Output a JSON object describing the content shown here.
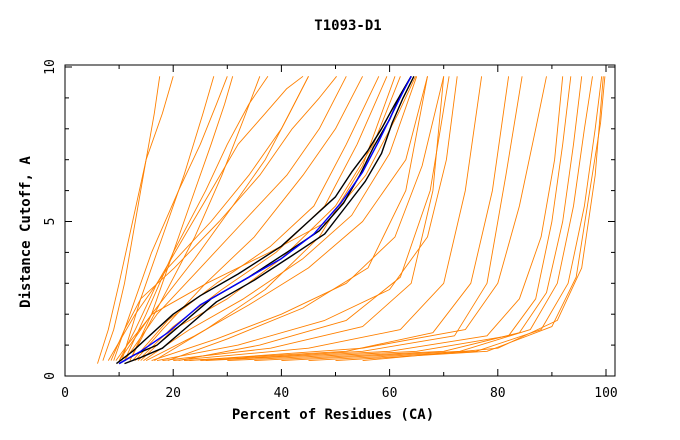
{
  "chart_data": {
    "type": "line",
    "title": "T1093-D1",
    "xlabel": "Percent of Residues (CA)",
    "ylabel": "Distance Cutoff, A",
    "xlim": [
      0,
      100
    ],
    "ylim": [
      0,
      10
    ],
    "x_ticks": [
      "0",
      "20",
      "40",
      "60",
      "80",
      "100"
    ],
    "y_ticks": [
      "0",
      "5",
      "10"
    ],
    "grid": false,
    "legend": "none",
    "colors": {
      "models": "#ff8000",
      "highlight_black": "#000000",
      "highlight_blue": "#0000ff",
      "axis": "#000000"
    },
    "series": [
      {
        "color": "#ff8000",
        "x": [
          9.4,
          11.5,
          16.1,
          26.2,
          37.8,
          48.5,
          55.6,
          61.6,
          64.8
        ],
        "y": [
          0.5,
          1.0,
          2.0,
          3.0,
          4.0,
          5.0,
          6.5,
          8.5,
          9.7
        ]
      },
      {
        "color": "#ff8000",
        "x": [
          8.5,
          11.0,
          14.0,
          20.2,
          28.5,
          36.0,
          42.0,
          47.0,
          50.2
        ],
        "y": [
          0.5,
          1.5,
          2.5,
          3.5,
          5.0,
          6.5,
          8.0,
          9.0,
          9.7
        ]
      },
      {
        "color": "#ff8000",
        "x": [
          10.0,
          13.0,
          17.0,
          22.0,
          27.0,
          32.0,
          37.0,
          41.0,
          44.0
        ],
        "y": [
          0.5,
          1.5,
          3.0,
          4.5,
          6.0,
          7.5,
          8.5,
          9.3,
          9.7
        ]
      },
      {
        "color": "#ff8000",
        "x": [
          7.0,
          9.0,
          11.0,
          13.0,
          15.0,
          16.5,
          17.5
        ],
        "y": [
          0.5,
          1.5,
          3.0,
          5.0,
          7.0,
          8.5,
          9.7
        ]
      },
      {
        "color": "#ff8000",
        "x": [
          6.0,
          8.0,
          10.0,
          12.5,
          15.0,
          18.0,
          20.0
        ],
        "y": [
          0.4,
          1.5,
          3.0,
          5.0,
          7.0,
          8.5,
          9.7
        ]
      },
      {
        "color": "#ff8000",
        "x": [
          12.0,
          16.0,
          20.0,
          24.0,
          27.0,
          29.5,
          31.0
        ],
        "y": [
          0.5,
          2.0,
          4.0,
          6.0,
          7.5,
          8.8,
          9.7
        ]
      },
      {
        "color": "#ff8000",
        "x": [
          11.0,
          15.0,
          20.0,
          26.0,
          30.0,
          34.0,
          37.5
        ],
        "y": [
          0.5,
          2.0,
          4.0,
          6.0,
          7.5,
          8.8,
          9.7
        ]
      },
      {
        "color": "#ff8000",
        "x": [
          13.0,
          18.0,
          26.0,
          35.0,
          44.0,
          50.0,
          55.0
        ],
        "y": [
          0.5,
          1.5,
          3.0,
          4.5,
          6.5,
          8.0,
          9.7
        ]
      },
      {
        "color": "#ff8000",
        "x": [
          14.0,
          20.0,
          30.0,
          40.0,
          50.0,
          57.0,
          62.0
        ],
        "y": [
          0.5,
          1.5,
          2.5,
          3.8,
          5.5,
          7.5,
          9.7
        ]
      },
      {
        "color": "#ff8000",
        "x": [
          15.0,
          24.0,
          34.0,
          45.0,
          55.0,
          63.0,
          67.0
        ],
        "y": [
          0.5,
          1.3,
          2.3,
          3.5,
          5.0,
          7.0,
          9.7
        ]
      },
      {
        "color": "#ff8000",
        "x": [
          16.0,
          28.0,
          40.0,
          52.0,
          61.0,
          66.0,
          70.0
        ],
        "y": [
          0.5,
          1.2,
          2.0,
          3.0,
          4.5,
          6.8,
          9.7
        ]
      },
      {
        "color": "#ff8000",
        "x": [
          17.0,
          32.0,
          48.0,
          60.0,
          67.0,
          70.5,
          72.5
        ],
        "y": [
          0.5,
          1.0,
          1.8,
          2.8,
          4.5,
          7.0,
          9.7
        ]
      },
      {
        "color": "#ff8000",
        "x": [
          18.0,
          38.0,
          55.0,
          64.0,
          68.0,
          70.0
        ],
        "y": [
          0.5,
          0.9,
          1.6,
          3.0,
          6.0,
          9.7
        ]
      },
      {
        "color": "#ff8000",
        "x": [
          20.0,
          45.0,
          62.0,
          70.0,
          74.0,
          77.0
        ],
        "y": [
          0.5,
          0.9,
          1.5,
          3.0,
          6.0,
          9.7
        ]
      },
      {
        "color": "#ff8000",
        "x": [
          22.0,
          52.0,
          68.0,
          75.0,
          79.0,
          82.0
        ],
        "y": [
          0.5,
          0.8,
          1.4,
          3.0,
          6.0,
          9.7
        ]
      },
      {
        "color": "#ff8000",
        "x": [
          25.0,
          55.0,
          72.0,
          78.0,
          81.5,
          84.5
        ],
        "y": [
          0.5,
          0.8,
          1.3,
          3.0,
          6.5,
          9.7
        ]
      },
      {
        "color": "#ff8000",
        "x": [
          9.0,
          12.0,
          16.0,
          21.0,
          25.0,
          28.0,
          30.0
        ],
        "y": [
          0.5,
          2.0,
          4.0,
          6.0,
          7.5,
          8.8,
          9.7
        ]
      },
      {
        "color": "#ff8000",
        "x": [
          10.5,
          14.0,
          18.0,
          22.0,
          25.5,
          27.5
        ],
        "y": [
          0.5,
          2.5,
          4.5,
          6.5,
          8.5,
          9.7
        ]
      },
      {
        "color": "#ff8000",
        "x": [
          8.0,
          13.0,
          19.0,
          27.0,
          34.0,
          40.0,
          45.0
        ],
        "y": [
          0.5,
          2.0,
          3.5,
          5.0,
          6.5,
          8.0,
          9.7
        ]
      },
      {
        "color": "#ff8000",
        "x": [
          12.5,
          19.0,
          28.0,
          38.0,
          46.0,
          52.0,
          58.0
        ],
        "y": [
          0.5,
          1.8,
          3.0,
          4.2,
          5.5,
          7.5,
          9.7
        ]
      },
      {
        "color": "#ff8000",
        "x": [
          11.0,
          17.0,
          25.0,
          33.0,
          41.0,
          47.0,
          52.0
        ],
        "y": [
          0.5,
          2.0,
          3.5,
          5.0,
          6.5,
          8.0,
          9.7
        ]
      },
      {
        "color": "#ff8000",
        "x": [
          14.5,
          23.0,
          33.0,
          44.0,
          53.0,
          60.0,
          65.0
        ],
        "y": [
          0.5,
          1.5,
          2.5,
          3.8,
          5.2,
          7.2,
          9.7
        ]
      },
      {
        "color": "#ff8000",
        "x": [
          19.0,
          30.0,
          44.0,
          56.0,
          63.0,
          67.0
        ],
        "y": [
          0.5,
          1.2,
          2.2,
          3.5,
          6.0,
          9.7
        ]
      },
      {
        "color": "#ff8000",
        "x": [
          21.0,
          36.0,
          52.0,
          62.0,
          67.5,
          71.0
        ],
        "y": [
          0.5,
          1.0,
          1.8,
          3.2,
          6.0,
          9.7
        ]
      },
      {
        "color": "#ff8000",
        "x": [
          13.5,
          20.0,
          29.0,
          39.0,
          48.0,
          54.0,
          59.5
        ],
        "y": [
          0.5,
          1.6,
          2.8,
          4.0,
          5.5,
          7.5,
          9.7
        ]
      },
      {
        "color": "#ff8000",
        "x": [
          10.0,
          16.0,
          24.0,
          31.0,
          37.0,
          41.5,
          45.0
        ],
        "y": [
          0.5,
          2.0,
          3.8,
          5.5,
          7.0,
          8.5,
          9.7
        ]
      },
      {
        "color": "#ff8000",
        "x": [
          12.0,
          18.0,
          24.0,
          29.0,
          33.0,
          36.0
        ],
        "y": [
          0.5,
          2.5,
          4.5,
          6.5,
          8.3,
          9.7
        ]
      },
      {
        "color": "#ff8000",
        "x": [
          16.5,
          26.0,
          37.0,
          47.0,
          55.0,
          61.0
        ],
        "y": [
          0.5,
          1.5,
          2.8,
          4.5,
          6.8,
          9.7
        ]
      },
      {
        "color": "#ff8000",
        "x": [
          26.0,
          60.0,
          78.0,
          84.0,
          88.0,
          90.5,
          92.0
        ],
        "y": [
          0.5,
          0.8,
          1.3,
          2.5,
          4.5,
          7.0,
          9.7
        ]
      },
      {
        "color": "#ff8000",
        "x": [
          30.0,
          65.0,
          82.0,
          87.0,
          90.0,
          92.0,
          93.5
        ],
        "y": [
          0.5,
          0.8,
          1.3,
          2.5,
          5.0,
          7.5,
          9.7
        ]
      },
      {
        "color": "#ff8000",
        "x": [
          35.0,
          70.0,
          84.0,
          89.0,
          92.0,
          94.0,
          95.5
        ],
        "y": [
          0.5,
          0.8,
          1.4,
          2.7,
          5.0,
          7.5,
          9.7
        ]
      },
      {
        "color": "#ff8000",
        "x": [
          40.0,
          73.0,
          86.0,
          91.0,
          94.0,
          96.0,
          97.5
        ],
        "y": [
          0.5,
          0.8,
          1.5,
          3.0,
          5.5,
          8.0,
          9.7
        ]
      },
      {
        "color": "#ff8000",
        "x": [
          45.0,
          76.0,
          88.0,
          93.0,
          96.0,
          98.0,
          99.2
        ],
        "y": [
          0.5,
          0.8,
          1.5,
          3.0,
          5.5,
          8.0,
          9.7
        ]
      },
      {
        "color": "#ff8000",
        "x": [
          50.0,
          78.0,
          90.0,
          94.5,
          97.0,
          99.0,
          99.8
        ],
        "y": [
          0.5,
          0.8,
          1.6,
          3.2,
          6.0,
          8.2,
          9.7
        ]
      },
      {
        "color": "#ff8000",
        "x": [
          23.0,
          55.0,
          74.0,
          80.0,
          84.0,
          87.0,
          89.0
        ],
        "y": [
          0.5,
          0.9,
          1.5,
          3.0,
          5.5,
          8.0,
          9.7
        ]
      },
      {
        "color": "#ff8000",
        "x": [
          55.0,
          80.0,
          91.0,
          95.5,
          98.0,
          99.5
        ],
        "y": [
          0.5,
          0.9,
          1.8,
          3.5,
          6.5,
          9.7
        ]
      },
      {
        "color": "#000000",
        "x": [
          9.5,
          12.5,
          15.0,
          20.0,
          25.0,
          32.0,
          40.0,
          45.0,
          50.0,
          53.0,
          56.0,
          58.5,
          61.0,
          64.0
        ],
        "y": [
          0.4,
          0.8,
          1.2,
          2.0,
          2.6,
          3.3,
          4.2,
          5.0,
          5.8,
          6.6,
          7.3,
          8.0,
          8.8,
          9.7
        ]
      },
      {
        "color": "#000000",
        "x": [
          10.0,
          13.0,
          17.0,
          21.0,
          27.0,
          34.0,
          41.0,
          47.0,
          51.5,
          54.5,
          57.0,
          60.0,
          62.0,
          64.0
        ],
        "y": [
          0.4,
          0.7,
          1.0,
          1.6,
          2.5,
          3.2,
          4.0,
          4.7,
          5.6,
          6.5,
          7.4,
          8.3,
          9.1,
          9.7
        ]
      },
      {
        "color": "#000000",
        "x": [
          11.0,
          14.0,
          18.0,
          22.0,
          28.0,
          35.0,
          42.0,
          48.0,
          52.0,
          55.5,
          58.5,
          60.5,
          62.5,
          64.5
        ],
        "y": [
          0.4,
          0.6,
          0.9,
          1.5,
          2.4,
          3.1,
          3.9,
          4.6,
          5.5,
          6.3,
          7.2,
          8.2,
          9.0,
          9.7
        ]
      },
      {
        "color": "#0000ff",
        "x": [
          10.0,
          14.0,
          19.0,
          25.0,
          32.0,
          40.0,
          46.0,
          51.0,
          55.0,
          58.0,
          60.5,
          62.5,
          64.0
        ],
        "y": [
          0.4,
          0.8,
          1.4,
          2.3,
          3.0,
          3.8,
          4.6,
          5.6,
          6.6,
          7.6,
          8.5,
          9.2,
          9.7
        ]
      }
    ]
  }
}
